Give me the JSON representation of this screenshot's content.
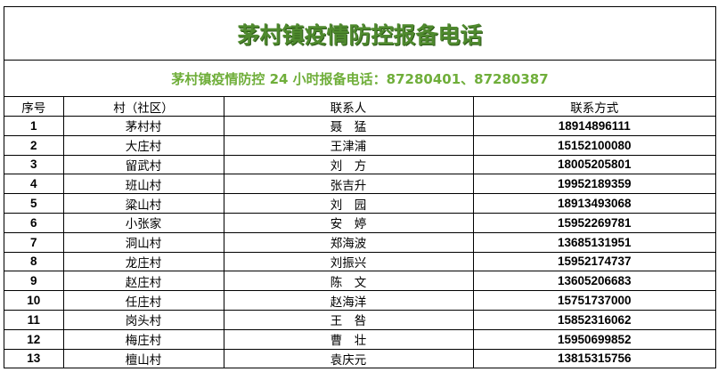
{
  "title": "茅村镇疫情防控报备电话",
  "subtitle": "茅村镇疫情防控 24 小时报备电话：87280401、87280387",
  "columns": [
    "序号",
    "村（社区）",
    "联系人",
    "联系方式"
  ],
  "rows": [
    [
      "1",
      "茅村村",
      "聂　猛",
      "18914896111"
    ],
    [
      "2",
      "大庄村",
      "王津浦",
      "15152100080"
    ],
    [
      "3",
      "留武村",
      "刘　方",
      "18005205801"
    ],
    [
      "4",
      "班山村",
      "张吉升",
      "19952189359"
    ],
    [
      "5",
      "粱山村",
      "刘　园",
      "18913493068"
    ],
    [
      "6",
      "小张家",
      "安　婷",
      "15952269781"
    ],
    [
      "7",
      "洞山村",
      "郑海波",
      "13685131951"
    ],
    [
      "8",
      "龙庄村",
      "刘振兴",
      "15952174737"
    ],
    [
      "9",
      "赵庄村",
      "陈　文",
      "13605206683"
    ],
    [
      "10",
      "任庄村",
      "赵海洋",
      "15751737000"
    ],
    [
      "11",
      "岗头村",
      "王　咎",
      "15852316062"
    ],
    [
      "12",
      "梅庄村",
      "曹　壮",
      "15950699852"
    ],
    [
      "13",
      "檀山村",
      "袁庆元",
      "13815315756"
    ]
  ],
  "colors": {
    "title": "#4f8a2e",
    "subtitle": "#6fae3a"
  }
}
